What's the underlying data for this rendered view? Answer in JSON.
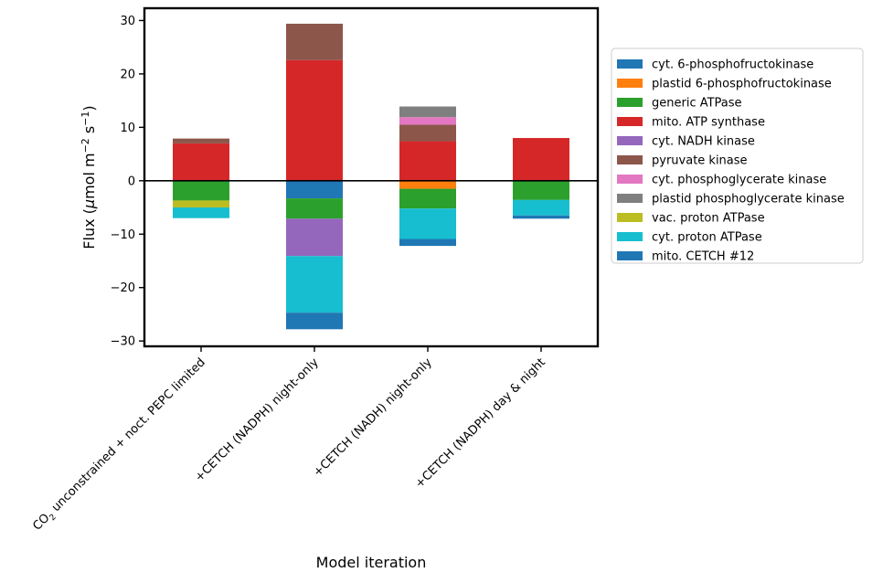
{
  "chart_data": {
    "type": "bar",
    "stacked": true,
    "title": "",
    "xlabel": "Model iteration",
    "ylabel": {
      "pre": "Flux (",
      "mu": "μ",
      "mid": "mol m",
      "sup1": "−2",
      "mid2": " s",
      "sup2": "−1",
      "post": ")"
    },
    "ylim": [
      -31,
      32.3
    ],
    "yticks": [
      -30,
      -20,
      -10,
      0,
      10,
      20,
      30
    ],
    "ytick_labels": [
      "−30",
      "−20",
      "−10",
      "0",
      "10",
      "20",
      "30"
    ],
    "zero_line": true,
    "grid": false,
    "legend_position": "right, outside plot",
    "categories": [
      {
        "pre": "CO",
        "sub": "2",
        "post": " unconstrained + noct. PEPC limited"
      },
      {
        "pre": "+CETCH (NADPH) night-only",
        "sub": "",
        "post": ""
      },
      {
        "pre": "+CETCH (NADH) night-only",
        "sub": "",
        "post": ""
      },
      {
        "pre": "+CETCH (NADPH) day & night",
        "sub": "",
        "post": ""
      }
    ],
    "series": [
      {
        "name": "cyt. 6-phosphofructokinase",
        "color": "#1f77b4",
        "values": [
          0,
          -3.3,
          0,
          0
        ]
      },
      {
        "name": "plastid 6-phosphofructokinase",
        "color": "#ff7f0e",
        "values": [
          0,
          0,
          -1.5,
          0
        ]
      },
      {
        "name": "generic ATPase",
        "color": "#2ca02c",
        "values": [
          -3.7,
          -3.8,
          -3.7,
          -3.6
        ]
      },
      {
        "name": "mito. ATP synthase",
        "color": "#d62728",
        "values": [
          7.0,
          22.6,
          7.4,
          8.0
        ]
      },
      {
        "name": "cyt. NADH kinase",
        "color": "#9467bd",
        "values": [
          0,
          -7.0,
          0,
          0
        ]
      },
      {
        "name": "pyruvate kinase",
        "color": "#8c564b",
        "values": [
          0.9,
          6.8,
          3.1,
          0
        ]
      },
      {
        "name": "cyt. phosphoglycerate kinase",
        "color": "#e377c2",
        "values": [
          0,
          0,
          1.4,
          0
        ]
      },
      {
        "name": "plastid phosphoglycerate kinase",
        "color": "#7f7f7f",
        "values": [
          0,
          0,
          2.0,
          0
        ]
      },
      {
        "name": "vac. proton ATPase",
        "color": "#bcbd22",
        "values": [
          -1.3,
          0,
          0,
          0
        ]
      },
      {
        "name": "cyt. proton ATPase",
        "color": "#17becf",
        "values": [
          -2.0,
          -10.6,
          -5.7,
          -2.9
        ]
      },
      {
        "name": "mito. CETCH #12",
        "color": "#1f77b4",
        "values": [
          0,
          -3.1,
          -1.3,
          -0.6
        ]
      }
    ]
  }
}
